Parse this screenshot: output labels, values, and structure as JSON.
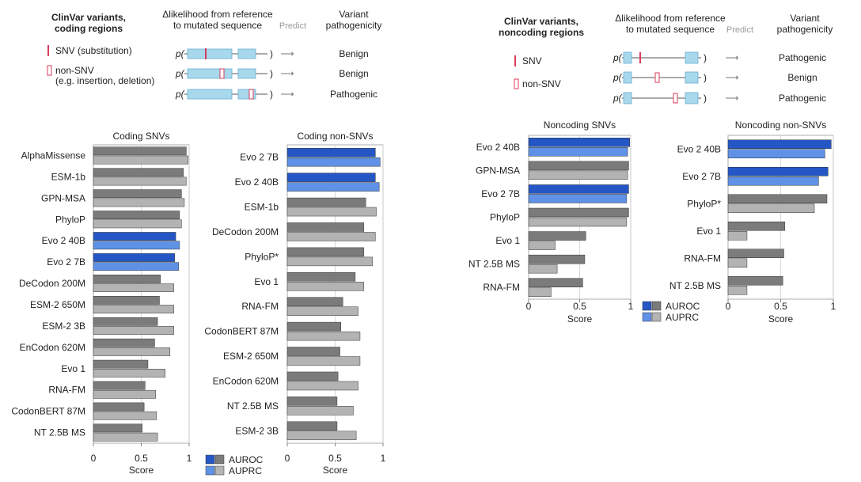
{
  "colors": {
    "evo_auroc": "#2457c5",
    "evo_auprc": "#5f92e6",
    "other_auroc": "#7b7b7b",
    "other_auprc": "#b3b3b3",
    "mutation": "#d93b5a",
    "seq_block": "#a8d8ec",
    "seq_border": "#6aaed0",
    "predict_text": "#9a9a9a",
    "gridline": "#d0d0d0"
  },
  "schematics": [
    {
      "title": [
        "ClinVar variants,",
        "coding regions"
      ],
      "col_likelihood": [
        "Δlikelihood from reference",
        "to mutated sequence"
      ],
      "col_predict": "Predict",
      "col_pathogenicity": [
        "Variant",
        "pathogenicity"
      ],
      "p_label": "p(",
      "close_paren": ")",
      "arrow_symbol": "⟶",
      "legend": [
        {
          "type": "snv",
          "label": [
            "SNV (substitution)"
          ]
        },
        {
          "type": "nonsnv",
          "label": [
            "non-SNV",
            "(e.g. insertion, deletion)"
          ]
        }
      ],
      "rows": [
        {
          "result": "Benign",
          "mutation": "snv"
        },
        {
          "result": "Benign",
          "mutation": "nonsnv"
        },
        {
          "result": "Pathogenic",
          "mutation": "nonsnv_end"
        }
      ]
    },
    {
      "title": [
        "ClinVar variants,",
        "noncoding regions"
      ],
      "col_likelihood": [
        "Δlikelihood from reference",
        "to mutated sequence"
      ],
      "col_predict": "Predict",
      "col_pathogenicity": [
        "Variant",
        "pathogenicity"
      ],
      "p_label": "p(",
      "close_paren": ")",
      "arrow_symbol": "⟶",
      "legend": [
        {
          "type": "snv",
          "label": [
            "SNV"
          ]
        },
        {
          "type": "nonsnv",
          "label": [
            "non-SNV"
          ]
        }
      ],
      "rows": [
        {
          "result": "Pathogenic",
          "mutation": "snv"
        },
        {
          "result": "Benign",
          "mutation": "nonsnv"
        },
        {
          "result": "Pathogenic",
          "mutation": "nonsnv_end"
        }
      ]
    }
  ],
  "legends": [
    {
      "auroc": "AUROC",
      "auprc": "AUPRC"
    },
    {
      "auroc": "AUROC",
      "auprc": "AUPRC"
    }
  ],
  "chart_data": [
    {
      "type": "bar",
      "orientation": "horizontal",
      "title": "Coding SNVs",
      "xlabel": "Score",
      "xlim": [
        0,
        1
      ],
      "ticks": [
        0,
        0.5,
        1
      ],
      "tick_labels": [
        "0",
        "0.5",
        "1"
      ],
      "series": [
        {
          "name": "AUROC"
        },
        {
          "name": "AUPRC"
        }
      ],
      "categories": [
        "AlphaMissense",
        "ESM-1b",
        "GPN-MSA",
        "PhyloP",
        "Evo 2 40B",
        "Evo 2 7B",
        "DeCodon 200M",
        "ESM-2 650M",
        "ESM-2 3B",
        "EnCodon 620M",
        "Evo 1",
        "RNA-FM",
        "CodonBERT 87M",
        "NT 2.5B MS"
      ],
      "highlight": [
        false,
        false,
        false,
        false,
        true,
        true,
        false,
        false,
        false,
        false,
        false,
        false,
        false,
        false
      ],
      "auroc": [
        0.97,
        0.94,
        0.92,
        0.9,
        0.86,
        0.85,
        0.7,
        0.69,
        0.67,
        0.64,
        0.57,
        0.54,
        0.53,
        0.51
      ],
      "auprc": [
        0.99,
        0.97,
        0.95,
        0.92,
        0.9,
        0.89,
        0.84,
        0.84,
        0.84,
        0.8,
        0.75,
        0.65,
        0.66,
        0.67
      ]
    },
    {
      "type": "bar",
      "orientation": "horizontal",
      "title": "Coding non-SNVs",
      "xlabel": "Score",
      "xlim": [
        0,
        1
      ],
      "ticks": [
        0,
        0.5,
        1
      ],
      "tick_labels": [
        "0",
        "0.5",
        "1"
      ],
      "series": [
        {
          "name": "AUROC"
        },
        {
          "name": "AUPRC"
        }
      ],
      "categories": [
        "Evo 2 7B",
        "Evo 2 40B",
        "ESM-1b",
        "DeCodon 200M",
        "PhyloP*",
        "Evo 1",
        "RNA-FM",
        "CodonBERT 87M",
        "ESM-2 650M",
        "EnCodon 620M",
        "NT 2.5B MS",
        "ESM-2 3B"
      ],
      "highlight": [
        true,
        true,
        false,
        false,
        false,
        false,
        false,
        false,
        false,
        false,
        false,
        false
      ],
      "auroc": [
        0.92,
        0.92,
        0.82,
        0.8,
        0.8,
        0.71,
        0.58,
        0.56,
        0.55,
        0.53,
        0.52,
        0.52
      ],
      "auprc": [
        0.97,
        0.96,
        0.93,
        0.92,
        0.89,
        0.8,
        0.74,
        0.76,
        0.76,
        0.74,
        0.69,
        0.72
      ]
    },
    {
      "type": "bar",
      "orientation": "horizontal",
      "title": "Noncoding SNVs",
      "xlabel": "Score",
      "xlim": [
        0,
        1
      ],
      "ticks": [
        0,
        0.5,
        1
      ],
      "tick_labels": [
        "0",
        "0.5",
        "1"
      ],
      "series": [
        {
          "name": "AUROC"
        },
        {
          "name": "AUPRC"
        }
      ],
      "categories": [
        "Evo 2 40B",
        "GPN-MSA",
        "Evo 2 7B",
        "PhyloP",
        "Evo 1",
        "NT 2.5B MS",
        "RNA-FM"
      ],
      "highlight": [
        true,
        false,
        true,
        false,
        false,
        false,
        false
      ],
      "auroc": [
        0.99,
        0.98,
        0.98,
        0.98,
        0.56,
        0.55,
        0.53
      ],
      "auprc": [
        0.97,
        0.97,
        0.96,
        0.96,
        0.26,
        0.28,
        0.22
      ]
    },
    {
      "type": "bar",
      "orientation": "horizontal",
      "title": "Noncoding non-SNVs",
      "xlabel": "Score",
      "xlim": [
        0,
        1
      ],
      "ticks": [
        0,
        0.5,
        1
      ],
      "tick_labels": [
        "0",
        "0.5",
        "1"
      ],
      "series": [
        {
          "name": "AUROC"
        },
        {
          "name": "AUPRC"
        }
      ],
      "categories": [
        "Evo 2 40B",
        "Evo 2 7B",
        "PhyloP*",
        "Evo 1",
        "RNA-FM",
        "NT 2.5B MS"
      ],
      "highlight": [
        true,
        true,
        false,
        false,
        false,
        false
      ],
      "auroc": [
        0.98,
        0.95,
        0.94,
        0.54,
        0.53,
        0.52
      ],
      "auprc": [
        0.92,
        0.86,
        0.82,
        0.18,
        0.18,
        0.18
      ]
    }
  ]
}
